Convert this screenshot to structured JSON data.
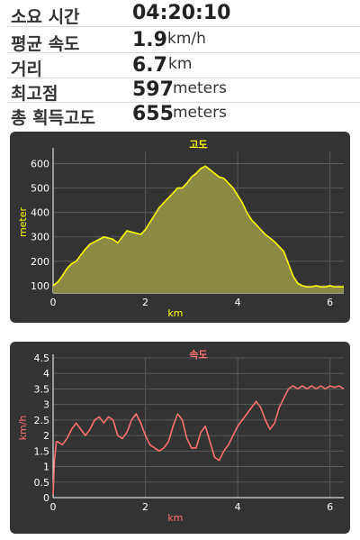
{
  "stats": [
    {
      "label": "소요 시간",
      "value": "04:20:10",
      "unit": ""
    },
    {
      "label": "평균 속도",
      "value": "1.9",
      "unit": "km/h"
    },
    {
      "label": "거리",
      "value": "6.7",
      "unit": "km"
    },
    {
      "label": "최고점",
      "value": "597",
      "unit": "meters"
    },
    {
      "label": "총 획득고도",
      "value": "655",
      "unit": "meters"
    }
  ],
  "chart_data": [
    {
      "type": "area",
      "title": "고도",
      "xlabel": "km",
      "ylabel": "meter",
      "xlim": [
        0,
        6.3
      ],
      "ylim": [
        70,
        650
      ],
      "xticks": [
        "0",
        "2",
        "4",
        "6"
      ],
      "yticks": [
        "100",
        "200",
        "300",
        "400",
        "500",
        "600"
      ],
      "grid": true,
      "colors": {
        "title": "#ffff00",
        "line": "#ffff00",
        "fill": "#8a8a45",
        "axis_text": "#ffffff"
      },
      "x": [
        0,
        0.1,
        0.2,
        0.3,
        0.4,
        0.5,
        0.6,
        0.7,
        0.8,
        0.9,
        1.0,
        1.1,
        1.2,
        1.3,
        1.4,
        1.5,
        1.6,
        1.7,
        1.8,
        1.9,
        2.0,
        2.1,
        2.2,
        2.3,
        2.4,
        2.5,
        2.6,
        2.7,
        2.8,
        2.9,
        3.0,
        3.1,
        3.2,
        3.3,
        3.4,
        3.5,
        3.6,
        3.7,
        3.8,
        3.9,
        4.0,
        4.1,
        4.2,
        4.3,
        4.4,
        4.5,
        4.6,
        4.7,
        4.8,
        4.9,
        5.0,
        5.1,
        5.2,
        5.3,
        5.4,
        5.5,
        5.6,
        5.7,
        5.8,
        5.9,
        6.0,
        6.1,
        6.2,
        6.3
      ],
      "values": [
        100,
        115,
        140,
        170,
        190,
        200,
        225,
        250,
        270,
        280,
        290,
        300,
        295,
        290,
        275,
        300,
        325,
        320,
        315,
        310,
        330,
        360,
        390,
        420,
        440,
        460,
        480,
        500,
        500,
        520,
        545,
        560,
        580,
        590,
        575,
        560,
        545,
        540,
        520,
        500,
        470,
        440,
        400,
        370,
        350,
        330,
        310,
        295,
        280,
        260,
        240,
        190,
        140,
        110,
        100,
        95,
        95,
        100,
        95,
        95,
        100,
        95,
        95,
        95
      ]
    },
    {
      "type": "line",
      "title": "속도",
      "xlabel": "km",
      "ylabel": "km/h",
      "xlim": [
        0,
        6.3
      ],
      "ylim": [
        0,
        4.5
      ],
      "xticks": [
        "0",
        "2",
        "4",
        "6"
      ],
      "yticks": [
        "0",
        "0.5",
        "1",
        "1.5",
        "2",
        "2.5",
        "3",
        "3.5",
        "4",
        "4.5"
      ],
      "grid": true,
      "colors": {
        "title": "#ff7070",
        "line": "#ff7070",
        "axis_text": "#ffffff"
      },
      "x": [
        0,
        0.03,
        0.07,
        0.1,
        0.2,
        0.3,
        0.4,
        0.5,
        0.6,
        0.7,
        0.8,
        0.9,
        1.0,
        1.1,
        1.2,
        1.3,
        1.4,
        1.5,
        1.6,
        1.7,
        1.8,
        1.9,
        2.0,
        2.1,
        2.2,
        2.3,
        2.4,
        2.5,
        2.6,
        2.7,
        2.8,
        2.9,
        3.0,
        3.1,
        3.2,
        3.3,
        3.4,
        3.5,
        3.6,
        3.7,
        3.8,
        3.9,
        4.0,
        4.1,
        4.2,
        4.3,
        4.4,
        4.5,
        4.6,
        4.7,
        4.8,
        4.9,
        5.0,
        5.1,
        5.2,
        5.3,
        5.4,
        5.5,
        5.6,
        5.7,
        5.8,
        5.9,
        6.0,
        6.1,
        6.2,
        6.3
      ],
      "values": [
        0.1,
        1.2,
        1.8,
        1.8,
        1.7,
        1.9,
        2.2,
        2.4,
        2.2,
        2.0,
        2.2,
        2.5,
        2.6,
        2.4,
        2.6,
        2.5,
        2.0,
        1.9,
        2.1,
        2.5,
        2.7,
        2.4,
        2.0,
        1.7,
        1.6,
        1.5,
        1.6,
        1.8,
        2.3,
        2.7,
        2.5,
        1.9,
        1.6,
        1.6,
        2.1,
        2.3,
        1.8,
        1.3,
        1.2,
        1.5,
        1.7,
        2.0,
        2.3,
        2.5,
        2.7,
        2.9,
        3.1,
        2.9,
        2.5,
        2.2,
        2.4,
        2.9,
        3.2,
        3.5,
        3.6,
        3.5,
        3.6,
        3.5,
        3.6,
        3.5,
        3.6,
        3.5,
        3.6,
        3.55,
        3.6,
        3.5
      ]
    }
  ]
}
